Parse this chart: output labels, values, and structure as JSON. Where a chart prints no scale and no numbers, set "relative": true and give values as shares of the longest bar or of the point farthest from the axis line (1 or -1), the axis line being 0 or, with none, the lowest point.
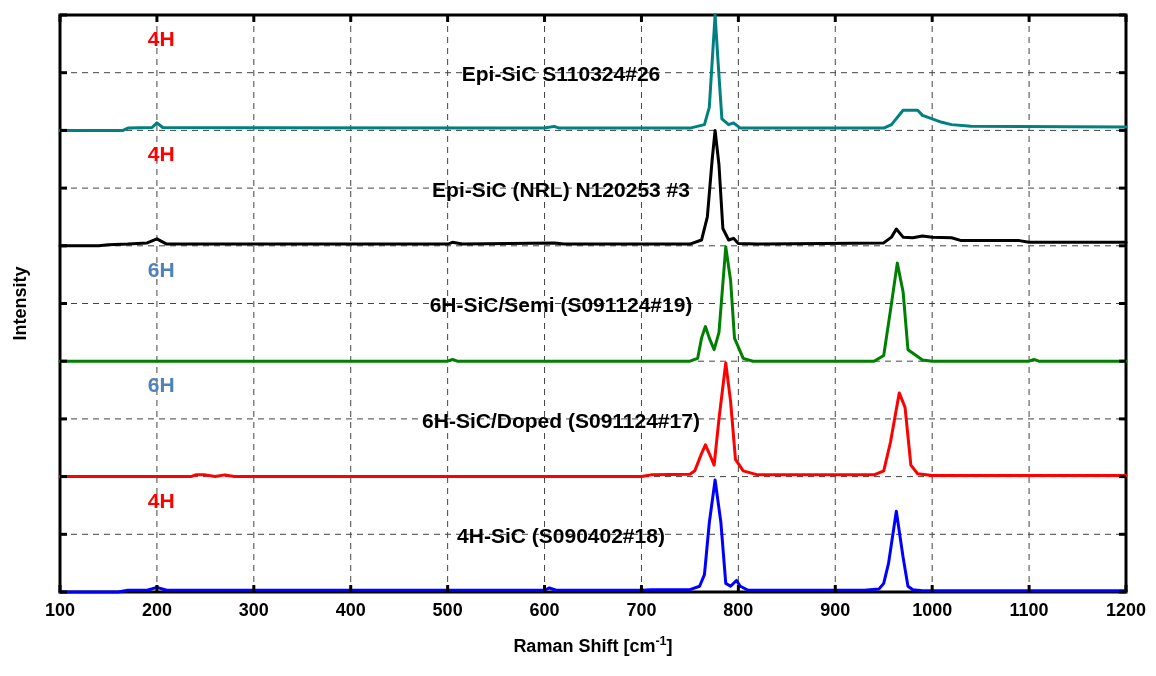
{
  "chart_data": {
    "type": "line",
    "relative": true,
    "xlabel": "Raman Shift [cm$^{-1}$]",
    "ylabel": "Intensity",
    "xlim": [
      100,
      1200
    ],
    "xticks": [
      100,
      200,
      300,
      400,
      500,
      600,
      700,
      800,
      900,
      1000,
      1100,
      1200
    ],
    "grid": true,
    "line_style": "solid",
    "series": [
      {
        "name": "4H-SiC (S090402#18)",
        "color": "#0000ff",
        "x": [
          100,
          160,
          170,
          190,
          200,
          210,
          230,
          600,
          605,
          612,
          620,
          700,
          710,
          750,
          760,
          765,
          770,
          776,
          782,
          787,
          792,
          798,
          802,
          810,
          900,
          930,
          945,
          950,
          955,
          963,
          970,
          975,
          980,
          990,
          1200
        ],
        "values": [
          0,
          0,
          0.003,
          0.003,
          0.008,
          0.003,
          0.003,
          0.003,
          0.007,
          0.003,
          0.003,
          0.003,
          0.004,
          0.004,
          0.01,
          0.03,
          0.12,
          0.194,
          0.12,
          0.015,
          0.01,
          0.02,
          0.01,
          0.003,
          0.003,
          0.003,
          0.005,
          0.015,
          0.05,
          0.14,
          0.06,
          0.01,
          0.004,
          0.002,
          0.002
        ]
      },
      {
        "name": "6H-SiC/Doped (S091124#17)",
        "color": "#ff0000",
        "x": [
          100,
          235,
          240,
          250,
          260,
          270,
          280,
          700,
          710,
          750,
          755,
          762,
          766,
          770,
          775,
          780,
          787,
          792,
          797,
          805,
          820,
          940,
          950,
          957,
          966,
          972,
          978,
          985,
          1000,
          1200
        ],
        "values": [
          0.2,
          0.2,
          0.203,
          0.203,
          0.2,
          0.203,
          0.2,
          0.2,
          0.203,
          0.204,
          0.21,
          0.24,
          0.255,
          0.24,
          0.22,
          0.3,
          0.397,
          0.33,
          0.23,
          0.21,
          0.203,
          0.203,
          0.21,
          0.26,
          0.345,
          0.32,
          0.22,
          0.205,
          0.202,
          0.202
        ]
      },
      {
        "name": "6H-SiC/Semi (S091124#19)",
        "color": "#008000",
        "x": [
          100,
          500,
          505,
          510,
          700,
          750,
          758,
          762,
          766,
          770,
          775,
          780,
          787,
          792,
          796,
          805,
          815,
          940,
          950,
          958,
          964,
          970,
          975,
          990,
          1000,
          1100,
          1105,
          1110,
          1200
        ],
        "values": [
          0.4,
          0.4,
          0.403,
          0.4,
          0.4,
          0.4,
          0.405,
          0.44,
          0.46,
          0.44,
          0.42,
          0.45,
          0.598,
          0.54,
          0.44,
          0.405,
          0.4,
          0.4,
          0.41,
          0.5,
          0.57,
          0.52,
          0.42,
          0.402,
          0.4,
          0.4,
          0.403,
          0.4,
          0.4
        ]
      },
      {
        "name": "Epi-SiC (NRL) N120253 #3",
        "color": "#000000",
        "x": [
          100,
          140,
          150,
          170,
          190,
          200,
          210,
          500,
          505,
          515,
          610,
          620,
          750,
          762,
          768,
          773,
          776,
          780,
          784,
          790,
          795,
          800,
          820,
          950,
          958,
          963,
          970,
          980,
          990,
          1000,
          1020,
          1030,
          1090,
          1100,
          1200
        ],
        "values": [
          0.6,
          0.6,
          0.602,
          0.603,
          0.605,
          0.612,
          0.603,
          0.603,
          0.606,
          0.603,
          0.605,
          0.603,
          0.603,
          0.61,
          0.65,
          0.75,
          0.8,
          0.74,
          0.63,
          0.61,
          0.613,
          0.604,
          0.603,
          0.605,
          0.615,
          0.629,
          0.615,
          0.614,
          0.617,
          0.615,
          0.614,
          0.609,
          0.609,
          0.606,
          0.606
        ]
      },
      {
        "name": "Epi-SiC S110324#26",
        "color": "#008080",
        "x": [
          100,
          165,
          170,
          195,
          200,
          206,
          600,
          610,
          615,
          750,
          765,
          770,
          773,
          776,
          779,
          783,
          790,
          795,
          802,
          950,
          958,
          970,
          985,
          990,
          1000,
          1010,
          1020,
          1040,
          1200
        ],
        "values": [
          0.8,
          0.8,
          0.804,
          0.805,
          0.813,
          0.805,
          0.804,
          0.807,
          0.804,
          0.804,
          0.81,
          0.84,
          0.92,
          1,
          0.92,
          0.82,
          0.81,
          0.813,
          0.804,
          0.804,
          0.81,
          0.835,
          0.835,
          0.826,
          0.82,
          0.814,
          0.81,
          0.807,
          0.806
        ]
      }
    ],
    "annotations": [
      "4H",
      "4H",
      "6H",
      "6H",
      "4H"
    ]
  }
}
